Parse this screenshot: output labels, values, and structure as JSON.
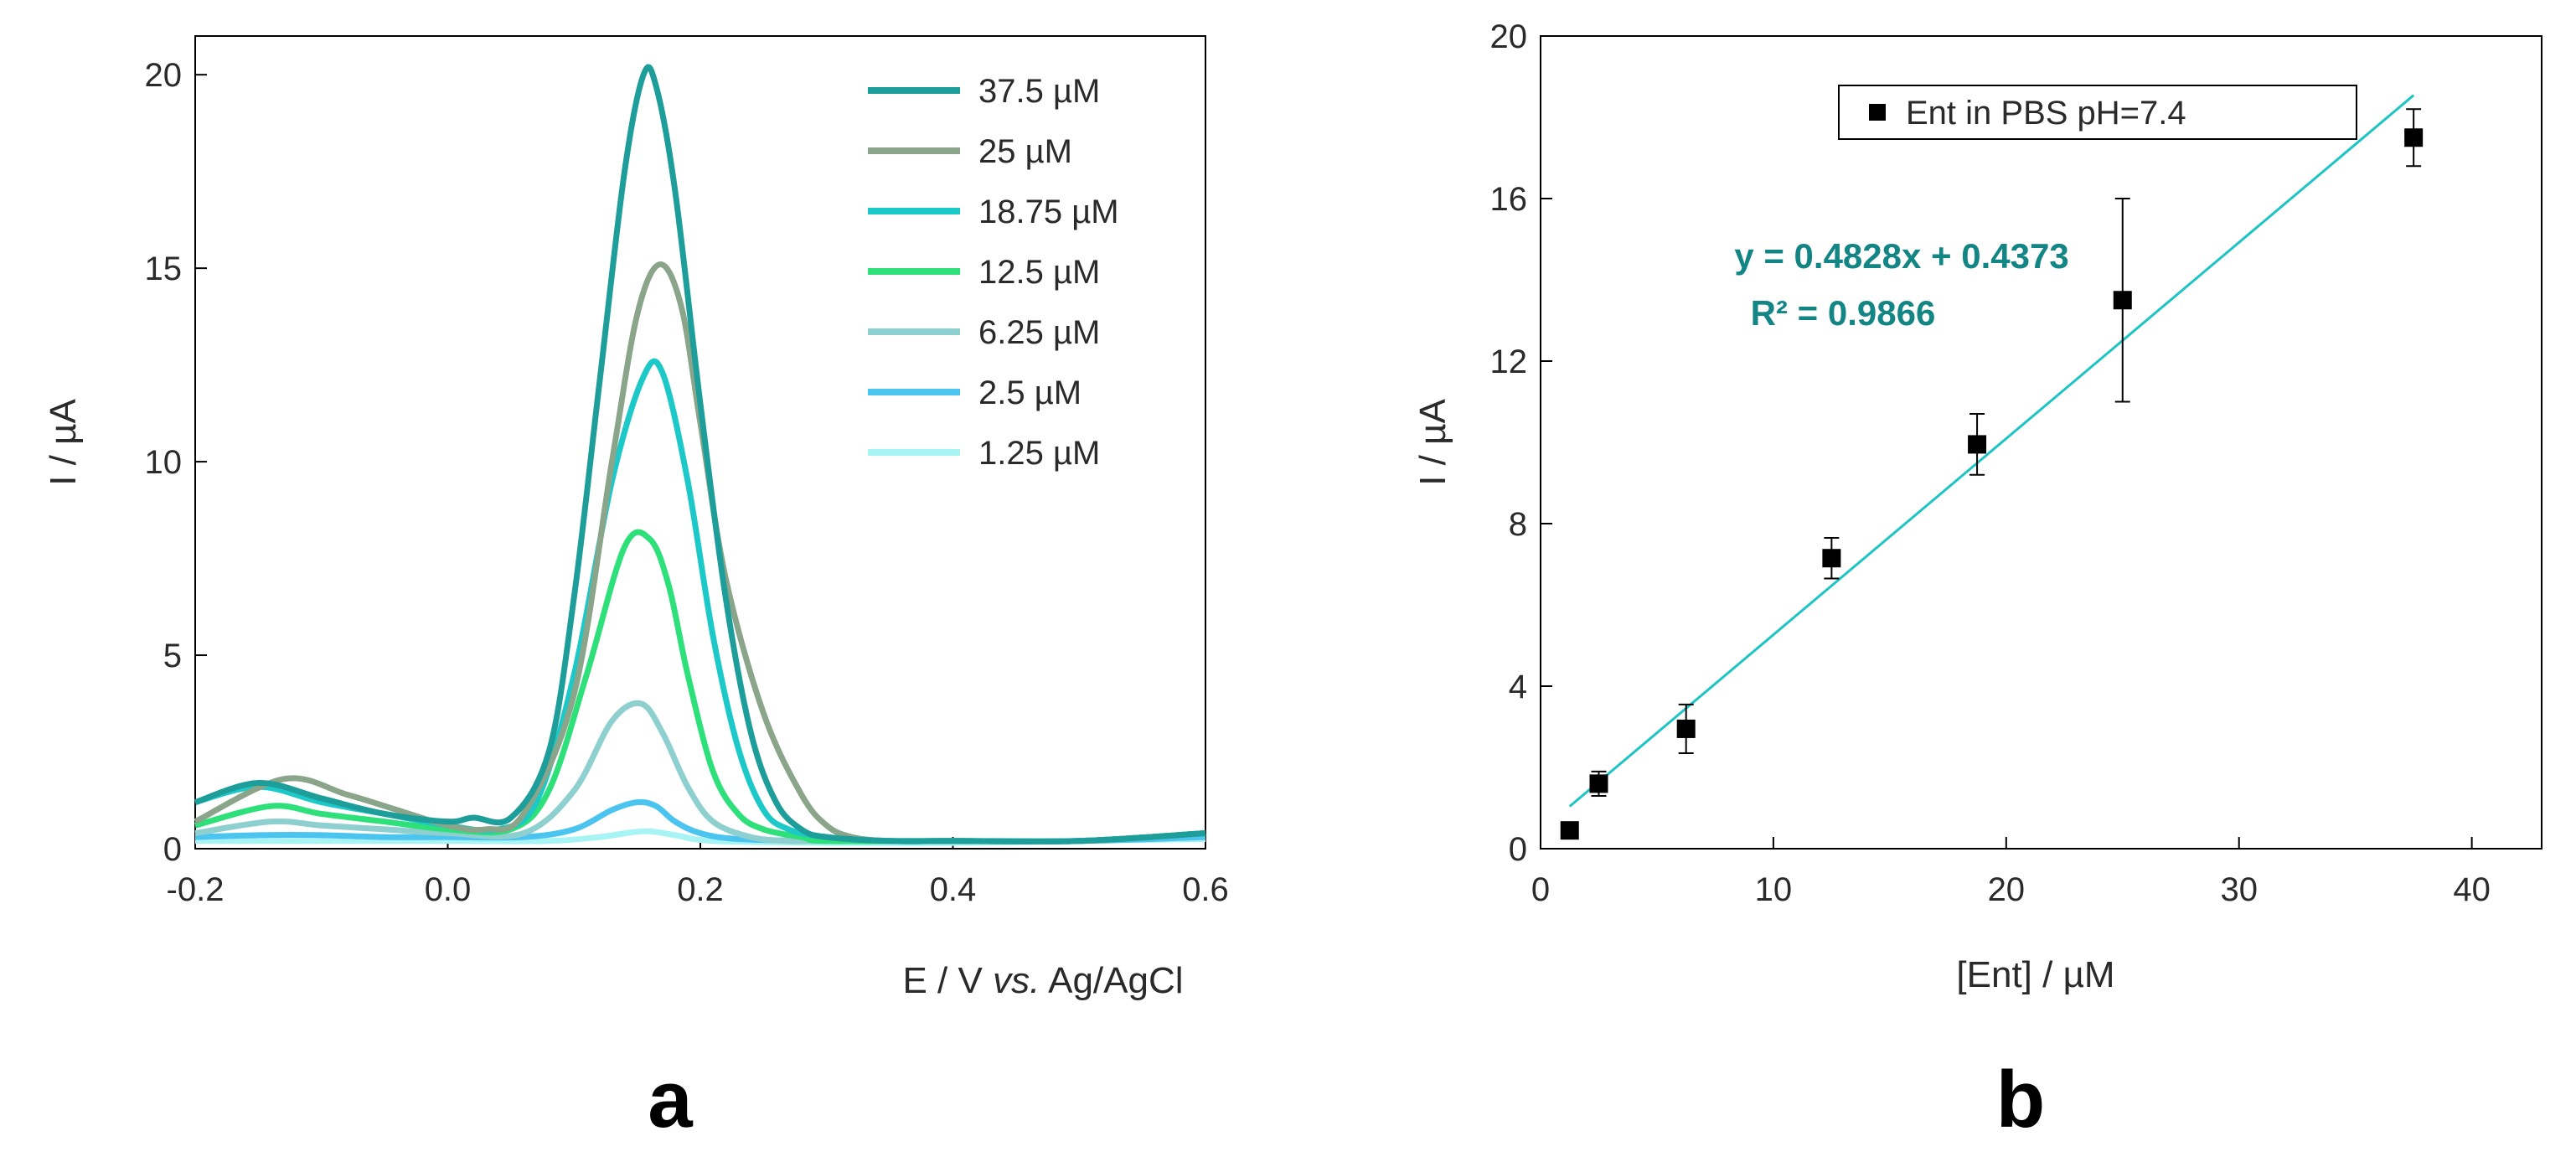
{
  "chart_data": [
    {
      "type": "line",
      "panel_label": "a",
      "xlabel_parts": [
        "E / V ",
        "vs.",
        " Ag/AgCl"
      ],
      "ylabel": "I / µA",
      "xlim": [
        -0.2,
        0.6
      ],
      "ylim": [
        0,
        21
      ],
      "xticks": [
        -0.2,
        0.0,
        0.2,
        0.4,
        0.6
      ],
      "xtick_labels": [
        "-0.2",
        "0.0",
        "0.2",
        "0.4",
        "0.6"
      ],
      "yticks": [
        0,
        5,
        10,
        15,
        20
      ],
      "ytick_labels": [
        "0",
        "5",
        "10",
        "15",
        "20"
      ],
      "legend_position": "top-right",
      "series": [
        {
          "name": "37.5 µM",
          "color": "#1e9e9a",
          "x": [
            -0.2,
            -0.15,
            -0.1,
            -0.05,
            0.0,
            0.02,
            0.05,
            0.08,
            0.1,
            0.12,
            0.14,
            0.155,
            0.165,
            0.18,
            0.2,
            0.22,
            0.24,
            0.26,
            0.28,
            0.3,
            0.35,
            0.4,
            0.5,
            0.6
          ],
          "y": [
            1.2,
            1.7,
            1.3,
            0.9,
            0.7,
            0.8,
            0.8,
            2.5,
            6.5,
            12.0,
            17.5,
            20.0,
            19.7,
            17.0,
            11.5,
            6.5,
            3.0,
            1.2,
            0.5,
            0.3,
            0.2,
            0.2,
            0.2,
            0.4
          ]
        },
        {
          "name": "25 µM",
          "color": "#8aa58a",
          "x": [
            -0.2,
            -0.13,
            -0.08,
            -0.04,
            0.0,
            0.03,
            0.06,
            0.1,
            0.13,
            0.15,
            0.168,
            0.185,
            0.2,
            0.22,
            0.25,
            0.28,
            0.3,
            0.32,
            0.35,
            0.4,
            0.5,
            0.6
          ],
          "y": [
            0.7,
            1.8,
            1.4,
            1.0,
            0.6,
            0.5,
            0.9,
            4.0,
            10.0,
            13.8,
            15.1,
            14.0,
            11.0,
            7.0,
            3.5,
            1.4,
            0.6,
            0.3,
            0.2,
            0.2,
            0.2,
            0.4
          ]
        },
        {
          "name": "18.75 µM",
          "color": "#1cc8c8",
          "x": [
            -0.2,
            -0.15,
            -0.1,
            -0.05,
            0.0,
            0.04,
            0.07,
            0.1,
            0.13,
            0.155,
            0.17,
            0.19,
            0.21,
            0.23,
            0.25,
            0.27,
            0.3,
            0.35,
            0.4,
            0.5,
            0.6
          ],
          "y": [
            1.2,
            1.6,
            1.2,
            0.9,
            0.6,
            0.5,
            1.2,
            4.5,
            9.5,
            12.2,
            12.3,
            9.5,
            5.5,
            2.6,
            1.0,
            0.5,
            0.3,
            0.2,
            0.2,
            0.2,
            0.4
          ]
        },
        {
          "name": "12.5 µM",
          "color": "#2ee07a",
          "x": [
            -0.2,
            -0.14,
            -0.1,
            -0.05,
            0.0,
            0.05,
            0.08,
            0.11,
            0.14,
            0.16,
            0.175,
            0.19,
            0.21,
            0.23,
            0.25,
            0.28,
            0.3,
            0.4,
            0.5,
            0.6
          ],
          "y": [
            0.6,
            1.1,
            0.9,
            0.7,
            0.5,
            0.5,
            1.5,
            4.5,
            7.8,
            8.0,
            6.8,
            4.5,
            2.0,
            0.9,
            0.5,
            0.3,
            0.2,
            0.2,
            0.2,
            0.4
          ]
        },
        {
          "name": "6.25 µM",
          "color": "#8ecfcf",
          "x": [
            -0.2,
            -0.14,
            -0.1,
            -0.05,
            0.0,
            0.06,
            0.1,
            0.13,
            0.153,
            0.17,
            0.19,
            0.21,
            0.24,
            0.27,
            0.3,
            0.4,
            0.5,
            0.6
          ],
          "y": [
            0.4,
            0.7,
            0.6,
            0.5,
            0.4,
            0.4,
            1.5,
            3.3,
            3.75,
            3.0,
            1.6,
            0.7,
            0.3,
            0.2,
            0.2,
            0.2,
            0.2,
            0.4
          ]
        },
        {
          "name": "2.5 µM",
          "color": "#4cc4f0",
          "x": [
            -0.2,
            -0.15,
            -0.1,
            -0.05,
            0.0,
            0.06,
            0.1,
            0.13,
            0.15,
            0.165,
            0.18,
            0.2,
            0.23,
            0.3,
            0.4,
            0.5,
            0.6
          ],
          "y": [
            0.3,
            0.35,
            0.35,
            0.3,
            0.3,
            0.3,
            0.5,
            1.0,
            1.2,
            1.1,
            0.7,
            0.4,
            0.25,
            0.2,
            0.2,
            0.2,
            0.3
          ]
        },
        {
          "name": "1.25 µM",
          "color": "#a8f4f4",
          "x": [
            -0.2,
            -0.1,
            0.0,
            0.08,
            0.12,
            0.155,
            0.18,
            0.21,
            0.3,
            0.4,
            0.5,
            0.6
          ],
          "y": [
            0.2,
            0.2,
            0.2,
            0.2,
            0.3,
            0.45,
            0.35,
            0.2,
            0.15,
            0.15,
            0.2,
            0.25
          ]
        }
      ]
    },
    {
      "type": "scatter",
      "panel_label": "b",
      "xlabel": "[Ent] / µM",
      "ylabel": "I / µA",
      "xlim": [
        0,
        43
      ],
      "ylim": [
        0,
        20
      ],
      "xticks": [
        0,
        10,
        20,
        30,
        40
      ],
      "xtick_labels": [
        "0",
        "10",
        "20",
        "30",
        "40"
      ],
      "yticks": [
        0,
        4,
        8,
        12,
        16,
        20
      ],
      "ytick_labels": [
        "0",
        "4",
        "8",
        "12",
        "16",
        "20"
      ],
      "legend_position": "top",
      "legend_label": "Ent in PBS pH=7.4",
      "point_color": "#000000",
      "fit_color": "#1cc4c4",
      "equation": "y = 0.4828x + 0.4373",
      "r_squared": "R² = 0.9866",
      "equation_color": "#138585",
      "fit": {
        "slope": 0.4828,
        "intercept": 0.4373,
        "x_range": [
          1.25,
          37.5
        ]
      },
      "points": [
        {
          "x": 1.25,
          "y": 0.45,
          "err": 0.1
        },
        {
          "x": 2.5,
          "y": 1.6,
          "err": 0.3
        },
        {
          "x": 6.25,
          "y": 2.95,
          "err": 0.6
        },
        {
          "x": 12.5,
          "y": 7.15,
          "err": 0.5
        },
        {
          "x": 18.75,
          "y": 9.95,
          "err": 0.75
        },
        {
          "x": 25,
          "y": 13.5,
          "err": 2.5
        },
        {
          "x": 37.5,
          "y": 17.5,
          "err": 0.7
        }
      ]
    }
  ]
}
